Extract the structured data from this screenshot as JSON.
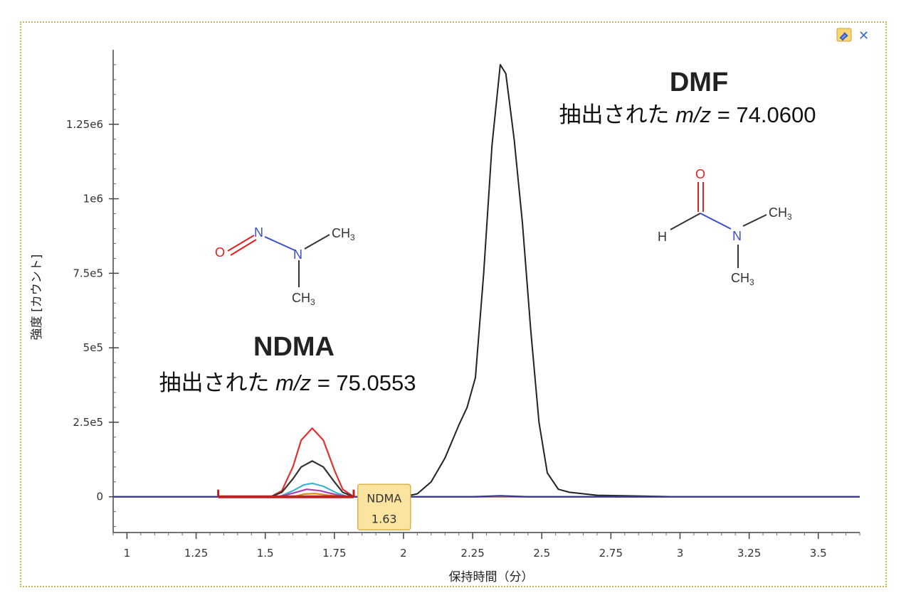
{
  "panel": {
    "pin_icon": "pin-icon",
    "close_icon": "close-icon",
    "close_glyph": "✕"
  },
  "chart_data": {
    "type": "line",
    "xlabel": "保持時間（分）",
    "ylabel": "強度 [カウント]",
    "xlim": [
      0.95,
      3.65
    ],
    "ylim": [
      -120000,
      1500000
    ],
    "x_ticks": [
      1,
      1.25,
      1.5,
      1.75,
      2,
      2.25,
      2.5,
      2.75,
      3,
      3.25,
      3.5
    ],
    "x_tick_labels": [
      "1",
      "1.25",
      "1.5",
      "1.75",
      "2",
      "2.25",
      "2.5",
      "2.75",
      "3",
      "3.25",
      "3.5"
    ],
    "y_ticks": [
      0,
      250000,
      500000,
      750000,
      1000000,
      1250000
    ],
    "y_tick_labels": [
      "0",
      "2.5e5",
      "5e5",
      "7.5e5",
      "1e6",
      "1.25e6"
    ],
    "grid": false,
    "series": [
      {
        "color": "#222222",
        "x": [
          0.95,
          2.0,
          2.05,
          2.1,
          2.15,
          2.2,
          2.23,
          2.26,
          2.29,
          2.32,
          2.35,
          2.37,
          2.4,
          2.43,
          2.46,
          2.49,
          2.52,
          2.56,
          2.6,
          2.7,
          3.0,
          3.65
        ],
        "y": [
          0,
          0,
          10000,
          50000,
          130000,
          240000,
          300000,
          400000,
          750000,
          1180000,
          1450000,
          1420000,
          1200000,
          920000,
          560000,
          250000,
          80000,
          25000,
          15000,
          5000,
          0,
          0
        ]
      },
      {
        "color": "#e03030",
        "x": [
          0.95,
          1.52,
          1.56,
          1.6,
          1.63,
          1.67,
          1.71,
          1.75,
          1.78,
          1.82,
          3.65
        ],
        "y": [
          0,
          0,
          20000,
          100000,
          190000,
          230000,
          190000,
          90000,
          25000,
          0,
          0
        ]
      },
      {
        "color": "#333333",
        "x": [
          0.95,
          1.52,
          1.56,
          1.6,
          1.63,
          1.67,
          1.71,
          1.75,
          1.78,
          1.82,
          3.65
        ],
        "y": [
          0,
          0,
          15000,
          60000,
          100000,
          120000,
          100000,
          50000,
          15000,
          0,
          0
        ]
      },
      {
        "color": "#40b0d0",
        "x": [
          0.95,
          1.55,
          1.6,
          1.64,
          1.67,
          1.71,
          1.76,
          1.8,
          3.65
        ],
        "y": [
          0,
          0,
          20000,
          40000,
          45000,
          35000,
          12000,
          0,
          0
        ]
      },
      {
        "color": "#b040b0",
        "x": [
          0.95,
          1.55,
          1.6,
          1.65,
          1.7,
          1.76,
          1.8,
          3.65
        ],
        "y": [
          0,
          0,
          12000,
          25000,
          20000,
          6000,
          0,
          0
        ]
      },
      {
        "color": "#e08a20",
        "x": [
          0.95,
          1.6,
          1.64,
          1.68,
          1.72,
          1.78,
          3.65
        ],
        "y": [
          0,
          0,
          9000,
          11000,
          6000,
          0,
          0
        ]
      },
      {
        "color": "#2a3aa8",
        "x": [
          0.95,
          2.25,
          2.35,
          2.45,
          3.65
        ],
        "y": [
          0,
          0,
          3000,
          0,
          0
        ]
      }
    ],
    "integration_range": {
      "x": [
        1.33,
        1.82
      ],
      "color": "#c02020"
    },
    "peak_label": {
      "name": "NDMA",
      "rt": "1.63",
      "x": 1.93,
      "y": -30000
    }
  },
  "annotations": {
    "dmf": {
      "name": "DMF",
      "mz_prefix": "抽出された ",
      "mz_italic": "m/z",
      "mz_value": " = 74.0600"
    },
    "ndma": {
      "name": "NDMA",
      "mz_prefix": "抽出された ",
      "mz_italic": "m/z",
      "mz_value": " = 75.0553"
    }
  },
  "structures": {
    "ndma": {
      "O": "O",
      "N1": "N",
      "N2": "N",
      "CH3_right": "CH",
      "CH3_right_sub": "3",
      "CH3_down": "CH",
      "CH3_down_sub": "3"
    },
    "dmf": {
      "O": "O",
      "H": "H",
      "N": "N",
      "CH3_right": "CH",
      "CH3_right_sub": "3",
      "CH3_down": "CH",
      "CH3_down_sub": "3"
    }
  },
  "colors": {
    "oxygen": "#e02020",
    "nitrogen": "#3a4fc8",
    "bond": "#333333",
    "tag_fill": "#fbe3a0",
    "tag_stroke": "#d9b24a"
  }
}
